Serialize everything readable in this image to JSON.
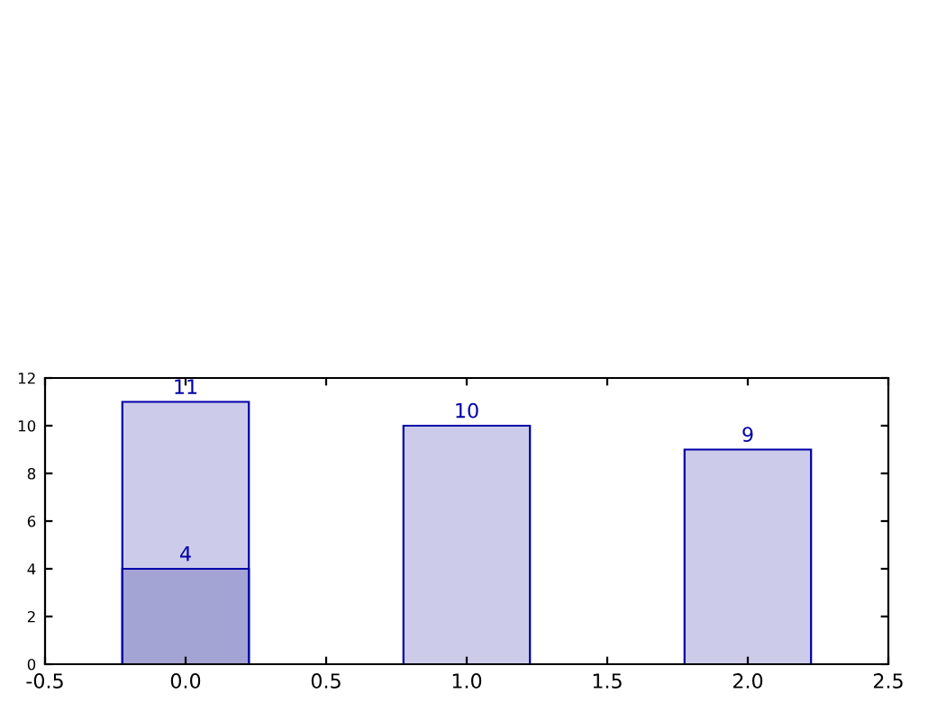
{
  "chart_data": {
    "type": "bar",
    "x": [
      0,
      1,
      2
    ],
    "series": [
      {
        "color": "#ccccea",
        "values": [
          11,
          10,
          9
        ]
      },
      {
        "color": "#a3a3d4",
        "values": [
          4,
          null,
          null
        ]
      }
    ],
    "xlim": [
      -0.5,
      2.5
    ],
    "xticks": [
      -0.5,
      {
        "value": 0,
        "label": "0.0"
      },
      0.5,
      {
        "value": 1,
        "label": "1.0"
      },
      1.5,
      {
        "value": 2,
        "label": "2.0"
      },
      2.5
    ],
    "ylim": [
      0,
      12
    ],
    "yticks": [
      0,
      2,
      4,
      6,
      8,
      10,
      12
    ],
    "data_labels": true,
    "grid": false,
    "legend": false
  }
}
